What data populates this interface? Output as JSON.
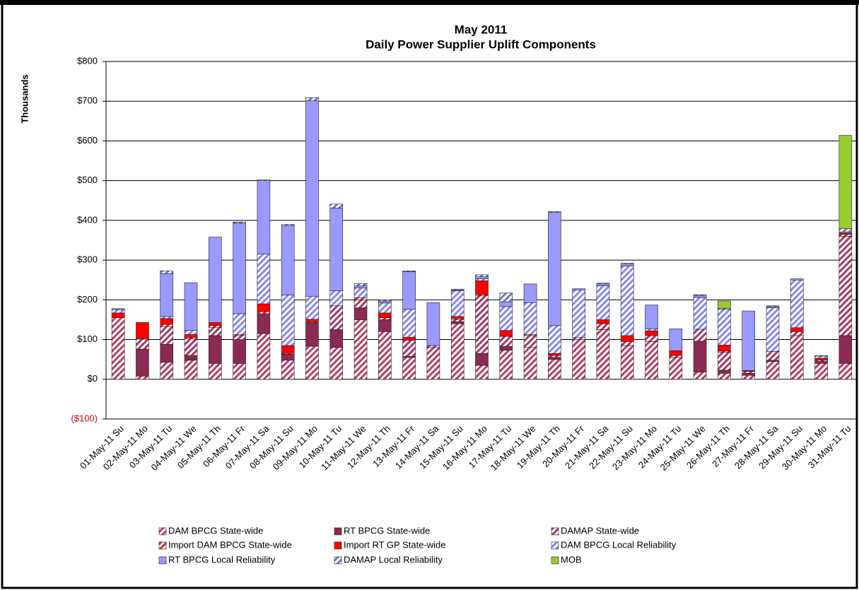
{
  "chart_data": {
    "type": "stacked_bar",
    "title": "May 2011",
    "subtitle": "Daily Power Supplier Uplift Components",
    "y_label": "Thousands",
    "categories": [
      "01-May-11 Su",
      "02-May-11 Mo",
      "03-May-11 Tu",
      "04-May-11 We",
      "05-May-11 Th",
      "06-May-11 Fr",
      "07-May-11 Sa",
      "08-May-11 Su",
      "09-May-11 Mo",
      "10-May-11 Tu",
      "11-May-11 We",
      "12-May-11 Th",
      "13-May-11 Fr",
      "14-May-11 Sa",
      "15-May-11 Su",
      "16-May-11 Mo",
      "17-May-11 Tu",
      "18-May-11 We",
      "19-May-11 Th",
      "20-May-11 Fr",
      "21-May-11 Sa",
      "22-May-11 Su",
      "23-May-11 Mo",
      "24-May-11 Tu",
      "25-May-11 We",
      "26-May-11 Th",
      "27-May-11 Fr",
      "28-May-11 Sa",
      "29-May-11 Su",
      "30-May-11 Mo",
      "31-May-11 Tu"
    ],
    "ylim": [
      -100,
      800
    ],
    "yticks": [
      {
        "value": -100,
        "label": "($100)"
      },
      {
        "value": 0,
        "label": "$0"
      },
      {
        "value": 100,
        "label": "$100"
      },
      {
        "value": 200,
        "label": "$200"
      },
      {
        "value": 300,
        "label": "$300"
      },
      {
        "value": 400,
        "label": "$400"
      },
      {
        "value": 500,
        "label": "$500"
      },
      {
        "value": 600,
        "label": "$600"
      },
      {
        "value": 700,
        "label": "$700"
      },
      {
        "value": 800,
        "label": "$800"
      }
    ],
    "grid": true,
    "series": [
      {
        "name": "DAM BPCG State-wide",
        "color": "#b0406a",
        "pattern": "hatch",
        "values": [
          155,
          8,
          43,
          48,
          40,
          40,
          115,
          48,
          83,
          80,
          150,
          120,
          55,
          80,
          140,
          35,
          73,
          80,
          50,
          100,
          125,
          85,
          95,
          55,
          18,
          15,
          10,
          45,
          110,
          40,
          40
        ]
      },
      {
        "name": "RT BPCG State-wide",
        "color": "#8b2a52",
        "pattern": "solid",
        "values": [
          0,
          68,
          45,
          12,
          70,
          60,
          50,
          15,
          60,
          45,
          30,
          30,
          3,
          0,
          5,
          30,
          10,
          0,
          5,
          0,
          0,
          0,
          0,
          0,
          78,
          8,
          5,
          3,
          0,
          5,
          70
        ]
      },
      {
        "name": "DAMAP State-wide",
        "color": "#a03a68",
        "pattern": "hatch",
        "values": [
          0,
          25,
          45,
          42,
          20,
          10,
          0,
          0,
          0,
          60,
          20,
          0,
          40,
          5,
          5,
          145,
          25,
          30,
          0,
          5,
          15,
          10,
          15,
          5,
          30,
          45,
          0,
          22,
          10,
          0,
          250
        ]
      },
      {
        "name": "Import DAM BPCG State-wide",
        "color": "#e02020",
        "pattern": "hatch",
        "values": [
          0,
          2,
          5,
          3,
          5,
          3,
          5,
          2,
          2,
          0,
          5,
          5,
          0,
          0,
          3,
          3,
          0,
          3,
          5,
          0,
          0,
          0,
          0,
          0,
          0,
          3,
          5,
          0,
          0,
          3,
          5
        ]
      },
      {
        "name": "Import RT GP State-wide",
        "color": "#ff0000",
        "pattern": "solid",
        "values": [
          12,
          40,
          15,
          8,
          8,
          0,
          20,
          20,
          6,
          0,
          0,
          12,
          8,
          0,
          5,
          35,
          15,
          0,
          5,
          0,
          10,
          15,
          12,
          12,
          0,
          15,
          2,
          0,
          10,
          5,
          3
        ]
      },
      {
        "name": "DAM BPCG Local Reliability",
        "color": "#8888ee",
        "pattern": "hatch",
        "values": [
          8,
          0,
          5,
          10,
          0,
          52,
          125,
          127,
          58,
          38,
          25,
          25,
          70,
          0,
          65,
          5,
          60,
          80,
          70,
          120,
          85,
          175,
          5,
          0,
          80,
          90,
          0,
          110,
          120,
          5,
          0
        ]
      },
      {
        "name": "RT BPCG Local Reliability",
        "color": "#9999ff",
        "pattern": "solid",
        "values": [
          3,
          0,
          108,
          120,
          215,
          228,
          185,
          175,
          492,
          208,
          5,
          5,
          95,
          108,
          2,
          5,
          12,
          47,
          285,
          3,
          5,
          5,
          60,
          55,
          5,
          0,
          150,
          3,
          3,
          0,
          3
        ]
      },
      {
        "name": "DAMAP Local Reliability",
        "color": "#7777bb",
        "pattern": "hatch",
        "values": [
          0,
          0,
          7,
          0,
          0,
          3,
          2,
          3,
          8,
          10,
          6,
          3,
          2,
          0,
          2,
          5,
          22,
          0,
          2,
          0,
          2,
          2,
          0,
          0,
          2,
          3,
          0,
          2,
          0,
          2,
          8
        ]
      },
      {
        "name": "MOB",
        "color": "#99cc33",
        "pattern": "solid",
        "values": [
          0,
          0,
          0,
          0,
          0,
          0,
          0,
          0,
          0,
          0,
          0,
          0,
          0,
          0,
          0,
          0,
          0,
          0,
          0,
          0,
          0,
          0,
          0,
          0,
          0,
          18,
          0,
          0,
          0,
          0,
          235
        ]
      }
    ]
  }
}
